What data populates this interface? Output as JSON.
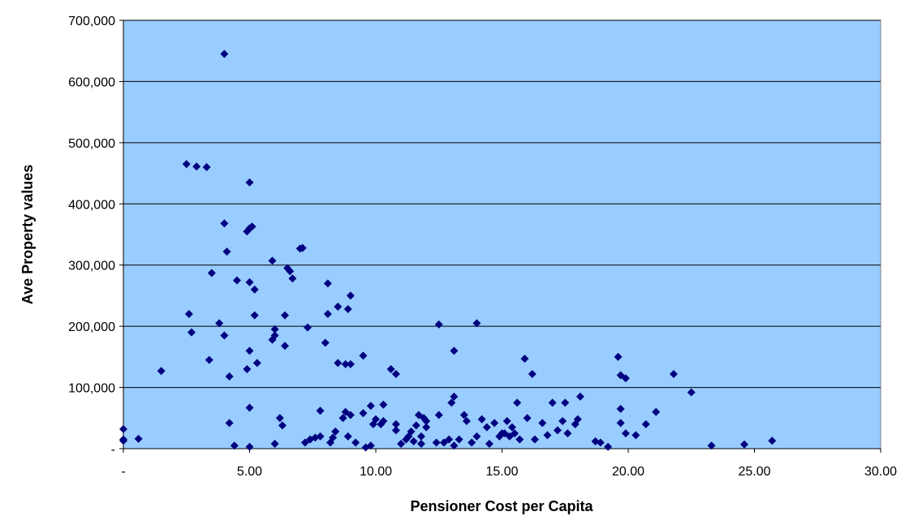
{
  "chart_data": {
    "type": "scatter",
    "title": "",
    "xlabel": "Pensioner Cost per Capita",
    "ylabel": "Ave Property values",
    "xlim": [
      0,
      30
    ],
    "ylim": [
      0,
      700000
    ],
    "x_ticks": [
      {
        "value": 0,
        "label": "-"
      },
      {
        "value": 5,
        "label": "5.00"
      },
      {
        "value": 10,
        "label": "10.00"
      },
      {
        "value": 15,
        "label": "15.00"
      },
      {
        "value": 20,
        "label": "20.00"
      },
      {
        "value": 25,
        "label": "25.00"
      },
      {
        "value": 30,
        "label": "30.00"
      }
    ],
    "y_ticks": [
      {
        "value": 0,
        "label": "-"
      },
      {
        "value": 100000,
        "label": "100,000"
      },
      {
        "value": 200000,
        "label": "200,000"
      },
      {
        "value": 300000,
        "label": "300,000"
      },
      {
        "value": 400000,
        "label": "400,000"
      },
      {
        "value": 500000,
        "label": "500,000"
      },
      {
        "value": 600000,
        "label": "600,000"
      },
      {
        "value": 700000,
        "label": "700,000"
      }
    ],
    "grid": "horizontal",
    "colors": {
      "plot_background": "#99ccff",
      "marker": "#000080",
      "gridline": "#000000"
    },
    "marker": "diamond",
    "points": [
      [
        0.0,
        32000
      ],
      [
        0.0,
        15000
      ],
      [
        0.0,
        13000
      ],
      [
        0.6,
        16000
      ],
      [
        1.5,
        127000
      ],
      [
        2.5,
        465000
      ],
      [
        2.9,
        461000
      ],
      [
        3.3,
        460000
      ],
      [
        2.6,
        220000
      ],
      [
        2.7,
        190000
      ],
      [
        3.4,
        145000
      ],
      [
        3.5,
        287000
      ],
      [
        3.8,
        205000
      ],
      [
        4.0,
        645000
      ],
      [
        4.0,
        368000
      ],
      [
        4.1,
        322000
      ],
      [
        4.0,
        185000
      ],
      [
        4.2,
        118000
      ],
      [
        4.2,
        42000
      ],
      [
        4.4,
        5000
      ],
      [
        4.5,
        275000
      ],
      [
        4.9,
        355000
      ],
      [
        5.0,
        360000
      ],
      [
        5.0,
        435000
      ],
      [
        5.0,
        272000
      ],
      [
        5.1,
        363000
      ],
      [
        5.2,
        260000
      ],
      [
        5.2,
        218000
      ],
      [
        5.3,
        140000
      ],
      [
        5.0,
        160000
      ],
      [
        4.9,
        130000
      ],
      [
        5.0,
        67000
      ],
      [
        5.0,
        3000
      ],
      [
        5.9,
        307000
      ],
      [
        5.9,
        178000
      ],
      [
        6.0,
        195000
      ],
      [
        6.0,
        185000
      ],
      [
        6.0,
        8000
      ],
      [
        6.2,
        50000
      ],
      [
        6.3,
        38000
      ],
      [
        6.4,
        218000
      ],
      [
        6.4,
        168000
      ],
      [
        6.5,
        295000
      ],
      [
        6.6,
        290000
      ],
      [
        6.7,
        278000
      ],
      [
        7.0,
        327000
      ],
      [
        7.1,
        328000
      ],
      [
        7.3,
        198000
      ],
      [
        7.2,
        10000
      ],
      [
        7.4,
        15000
      ],
      [
        7.6,
        18000
      ],
      [
        7.8,
        20000
      ],
      [
        7.8,
        62000
      ],
      [
        8.0,
        173000
      ],
      [
        8.1,
        220000
      ],
      [
        8.1,
        270000
      ],
      [
        8.2,
        10000
      ],
      [
        8.3,
        18000
      ],
      [
        8.4,
        28000
      ],
      [
        8.5,
        232000
      ],
      [
        8.5,
        140000
      ],
      [
        8.8,
        138000
      ],
      [
        8.7,
        50000
      ],
      [
        8.8,
        60000
      ],
      [
        8.9,
        228000
      ],
      [
        9.0,
        250000
      ],
      [
        9.0,
        138000
      ],
      [
        8.9,
        20000
      ],
      [
        9.0,
        55000
      ],
      [
        9.2,
        10000
      ],
      [
        9.5,
        152000
      ],
      [
        9.5,
        58000
      ],
      [
        9.6,
        2000
      ],
      [
        9.8,
        70000
      ],
      [
        9.9,
        40000
      ],
      [
        9.8,
        5000
      ],
      [
        10.0,
        48000
      ],
      [
        10.2,
        40000
      ],
      [
        10.3,
        72000
      ],
      [
        10.3,
        45000
      ],
      [
        10.6,
        130000
      ],
      [
        10.8,
        122000
      ],
      [
        10.8,
        40000
      ],
      [
        10.8,
        30000
      ],
      [
        11.0,
        8000
      ],
      [
        11.2,
        15000
      ],
      [
        11.3,
        20000
      ],
      [
        11.4,
        28000
      ],
      [
        11.5,
        12000
      ],
      [
        11.6,
        38000
      ],
      [
        11.7,
        55000
      ],
      [
        11.8,
        20000
      ],
      [
        11.8,
        8000
      ],
      [
        11.9,
        50000
      ],
      [
        12.0,
        35000
      ],
      [
        12.0,
        45000
      ],
      [
        12.5,
        203000
      ],
      [
        12.5,
        55000
      ],
      [
        12.4,
        10000
      ],
      [
        12.7,
        10000
      ],
      [
        12.9,
        15000
      ],
      [
        13.0,
        75000
      ],
      [
        13.1,
        85000
      ],
      [
        13.1,
        160000
      ],
      [
        13.3,
        15000
      ],
      [
        13.1,
        5000
      ],
      [
        13.5,
        55000
      ],
      [
        13.6,
        45000
      ],
      [
        13.8,
        10000
      ],
      [
        14.0,
        205000
      ],
      [
        14.0,
        20000
      ],
      [
        14.2,
        48000
      ],
      [
        14.4,
        35000
      ],
      [
        14.5,
        8000
      ],
      [
        14.7,
        42000
      ],
      [
        14.9,
        20000
      ],
      [
        15.0,
        25000
      ],
      [
        15.1,
        25000
      ],
      [
        15.2,
        45000
      ],
      [
        15.3,
        20000
      ],
      [
        15.4,
        35000
      ],
      [
        15.5,
        25000
      ],
      [
        15.6,
        75000
      ],
      [
        15.7,
        15000
      ],
      [
        15.9,
        147000
      ],
      [
        16.0,
        50000
      ],
      [
        16.2,
        122000
      ],
      [
        16.3,
        15000
      ],
      [
        16.6,
        42000
      ],
      [
        16.8,
        22000
      ],
      [
        17.0,
        75000
      ],
      [
        17.2,
        30000
      ],
      [
        17.4,
        45000
      ],
      [
        17.5,
        75000
      ],
      [
        17.6,
        25000
      ],
      [
        17.9,
        40000
      ],
      [
        18.0,
        48000
      ],
      [
        18.1,
        85000
      ],
      [
        18.7,
        12000
      ],
      [
        18.9,
        10000
      ],
      [
        19.2,
        3000
      ],
      [
        19.6,
        150000
      ],
      [
        19.7,
        120000
      ],
      [
        19.7,
        65000
      ],
      [
        19.7,
        42000
      ],
      [
        19.9,
        25000
      ],
      [
        19.9,
        115000
      ],
      [
        20.3,
        22000
      ],
      [
        20.7,
        40000
      ],
      [
        21.1,
        60000
      ],
      [
        21.8,
        122000
      ],
      [
        22.5,
        92000
      ],
      [
        23.3,
        5000
      ],
      [
        24.6,
        7000
      ],
      [
        25.7,
        13000
      ]
    ]
  }
}
